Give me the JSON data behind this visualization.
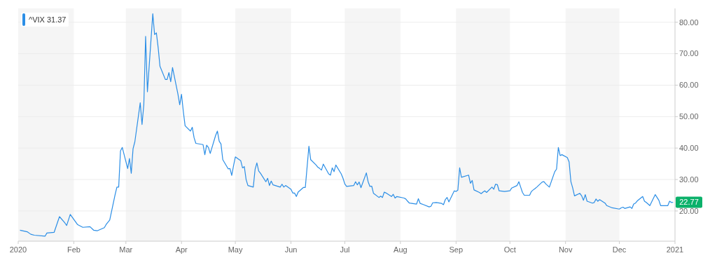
{
  "chart_data": {
    "type": "line",
    "legend": "top left",
    "grid": "y",
    "marker": "none",
    "line_style": "solid",
    "xlim": [
      "2020-01-01",
      "2021-01-01"
    ],
    "xticks": [
      {
        "value": "2020-01-01",
        "label": "2020"
      },
      {
        "value": "2020-02-01",
        "label": "Feb"
      },
      {
        "value": "2020-03-01",
        "label": "Mar"
      },
      {
        "value": "2020-04-01",
        "label": "Apr"
      },
      {
        "value": "2020-05-01",
        "label": "May"
      },
      {
        "value": "2020-06-01",
        "label": "Jun"
      },
      {
        "value": "2020-07-01",
        "label": "Jul"
      },
      {
        "value": "2020-08-01",
        "label": "Aug"
      },
      {
        "value": "2020-09-01",
        "label": "Sep"
      },
      {
        "value": "2020-10-01",
        "label": "Oct"
      },
      {
        "value": "2020-11-01",
        "label": "Nov"
      },
      {
        "value": "2020-12-01",
        "label": "Dec"
      },
      {
        "value": "2021-01-01",
        "label": "2021"
      }
    ],
    "ylim": [
      10.4,
      84.4
    ],
    "yticks": [
      {
        "value": 20,
        "label": "20.00"
      },
      {
        "value": 30,
        "label": "30.00"
      },
      {
        "value": 40,
        "label": "40.00"
      },
      {
        "value": 50,
        "label": "50.00"
      },
      {
        "value": 60,
        "label": "60.00"
      },
      {
        "value": 70,
        "label": "70.00"
      },
      {
        "value": 80,
        "label": "80.00"
      }
    ],
    "bands": [
      {
        "axis": "x",
        "from": "2020-01-01",
        "to": "2020-02-01",
        "color": "#f5f5f5"
      },
      {
        "axis": "x",
        "from": "2020-03-01",
        "to": "2020-04-01",
        "color": "#f5f5f5"
      },
      {
        "axis": "x",
        "from": "2020-05-01",
        "to": "2020-06-01",
        "color": "#f5f5f5"
      },
      {
        "axis": "x",
        "from": "2020-07-01",
        "to": "2020-08-01",
        "color": "#f5f5f5"
      },
      {
        "axis": "x",
        "from": "2020-09-01",
        "to": "2020-10-01",
        "color": "#f5f5f5"
      },
      {
        "axis": "x",
        "from": "2020-11-01",
        "to": "2020-12-01",
        "color": "#f5f5f5"
      }
    ],
    "annotations": [
      {
        "text": "22.77",
        "x": "2020-12-31",
        "y": 22.77
      }
    ],
    "series": [
      {
        "name": "^VIX 31.37",
        "color": "#2b8ee6",
        "x": [
          "2020-01-02",
          "2020-01-06",
          "2020-01-08",
          "2020-01-10",
          "2020-01-16",
          "2020-01-17",
          "2020-01-21",
          "2020-01-24",
          "2020-01-27",
          "2020-01-28",
          "2020-01-30",
          "2020-02-03",
          "2020-02-06",
          "2020-02-10",
          "2020-02-12",
          "2020-02-14",
          "2020-02-18",
          "2020-02-19",
          "2020-02-21",
          "2020-02-24",
          "2020-02-25",
          "2020-02-26",
          "2020-02-27",
          "2020-02-28",
          "2020-03-02",
          "2020-03-03",
          "2020-03-04",
          "2020-03-05",
          "2020-03-06",
          "2020-03-09",
          "2020-03-10",
          "2020-03-11",
          "2020-03-12",
          "2020-03-13",
          "2020-03-16",
          "2020-03-17",
          "2020-03-18",
          "2020-03-19",
          "2020-03-20",
          "2020-03-23",
          "2020-03-24",
          "2020-03-25",
          "2020-03-26",
          "2020-03-27",
          "2020-03-30",
          "2020-03-31",
          "2020-04-01",
          "2020-04-02",
          "2020-04-03",
          "2020-04-06",
          "2020-04-07",
          "2020-04-08",
          "2020-04-09",
          "2020-04-13",
          "2020-04-14",
          "2020-04-15",
          "2020-04-16",
          "2020-04-17",
          "2020-04-20",
          "2020-04-21",
          "2020-04-22",
          "2020-04-23",
          "2020-04-24",
          "2020-04-27",
          "2020-04-28",
          "2020-04-29",
          "2020-04-30",
          "2020-05-01",
          "2020-05-04",
          "2020-05-05",
          "2020-05-06",
          "2020-05-07",
          "2020-05-08",
          "2020-05-11",
          "2020-05-12",
          "2020-05-13",
          "2020-05-14",
          "2020-05-15",
          "2020-05-18",
          "2020-05-19",
          "2020-05-20",
          "2020-05-21",
          "2020-05-22",
          "2020-05-26",
          "2020-05-27",
          "2020-05-28",
          "2020-05-29",
          "2020-06-01",
          "2020-06-02",
          "2020-06-03",
          "2020-06-04",
          "2020-06-05",
          "2020-06-08",
          "2020-06-09",
          "2020-06-11",
          "2020-06-12",
          "2020-06-15",
          "2020-06-16",
          "2020-06-17",
          "2020-06-18",
          "2020-06-19",
          "2020-06-22",
          "2020-06-23",
          "2020-06-24",
          "2020-06-25",
          "2020-06-26",
          "2020-06-29",
          "2020-06-30",
          "2020-07-01",
          "2020-07-02",
          "2020-07-06",
          "2020-07-07",
          "2020-07-08",
          "2020-07-09",
          "2020-07-10",
          "2020-07-13",
          "2020-07-14",
          "2020-07-15",
          "2020-07-16",
          "2020-07-17",
          "2020-07-20",
          "2020-07-21",
          "2020-07-22",
          "2020-07-23",
          "2020-07-24",
          "2020-07-27",
          "2020-07-28",
          "2020-07-29",
          "2020-07-30",
          "2020-08-03",
          "2020-08-04",
          "2020-08-05",
          "2020-08-06",
          "2020-08-10",
          "2020-08-11",
          "2020-08-12",
          "2020-08-14",
          "2020-08-17",
          "2020-08-18",
          "2020-08-19",
          "2020-08-21",
          "2020-08-24",
          "2020-08-25",
          "2020-08-26",
          "2020-08-27",
          "2020-08-28",
          "2020-08-31",
          "2020-09-01",
          "2020-09-02",
          "2020-09-03",
          "2020-09-04",
          "2020-09-08",
          "2020-09-09",
          "2020-09-10",
          "2020-09-11",
          "2020-09-14",
          "2020-09-15",
          "2020-09-16",
          "2020-09-17",
          "2020-09-18",
          "2020-09-21",
          "2020-09-22",
          "2020-09-23",
          "2020-09-24",
          "2020-09-25",
          "2020-09-28",
          "2020-10-01",
          "2020-10-02",
          "2020-10-05",
          "2020-10-06",
          "2020-10-07",
          "2020-10-08",
          "2020-10-09",
          "2020-10-12",
          "2020-10-13",
          "2020-10-14",
          "2020-10-15",
          "2020-10-16",
          "2020-10-19",
          "2020-10-20",
          "2020-10-21",
          "2020-10-22",
          "2020-10-23",
          "2020-10-26",
          "2020-10-27",
          "2020-10-28",
          "2020-10-29",
          "2020-10-30",
          "2020-11-02",
          "2020-11-03",
          "2020-11-04",
          "2020-11-05",
          "2020-11-06",
          "2020-11-09",
          "2020-11-10",
          "2020-11-11",
          "2020-11-12",
          "2020-11-13",
          "2020-11-16",
          "2020-11-17",
          "2020-11-18",
          "2020-11-19",
          "2020-11-20",
          "2020-11-23",
          "2020-11-24",
          "2020-11-27",
          "2020-12-01",
          "2020-12-02",
          "2020-12-03",
          "2020-12-04",
          "2020-12-07",
          "2020-12-08",
          "2020-12-09",
          "2020-12-10",
          "2020-12-11",
          "2020-12-14",
          "2020-12-15",
          "2020-12-16",
          "2020-12-17",
          "2020-12-18",
          "2020-12-21",
          "2020-12-22",
          "2020-12-23",
          "2020-12-24",
          "2020-12-28",
          "2020-12-29",
          "2020-12-30",
          "2020-12-31"
        ],
        "values": [
          13.9,
          13.4,
          12.6,
          12.3,
          12.0,
          13.0,
          13.2,
          18.2,
          16.2,
          15.4,
          18.9,
          15.7,
          14.8,
          15.0,
          13.9,
          13.7,
          14.7,
          15.7,
          17.1,
          25.2,
          27.6,
          27.6,
          39.1,
          40.2,
          33.5,
          36.7,
          32.0,
          39.8,
          42.0,
          54.4,
          47.5,
          53.8,
          75.5,
          57.9,
          82.7,
          76.1,
          76.6,
          71.9,
          66.0,
          61.8,
          61.8,
          64.0,
          61.1,
          65.6,
          57.2,
          53.8,
          57.1,
          51.7,
          47.1,
          45.4,
          46.6,
          43.3,
          41.5,
          41.1,
          37.9,
          40.9,
          40.2,
          38.3,
          44.0,
          45.4,
          42.2,
          41.3,
          36.3,
          33.4,
          33.5,
          31.3,
          34.4,
          37.2,
          36.0,
          33.7,
          34.1,
          30.0,
          28.1,
          27.6,
          33.2,
          35.3,
          32.7,
          32.0,
          29.3,
          30.4,
          28.1,
          29.5,
          28.3,
          27.6,
          28.5,
          27.6,
          28.1,
          26.9,
          25.7,
          25.7,
          24.6,
          26.0,
          27.5,
          27.5,
          40.6,
          36.3,
          34.6,
          33.9,
          33.5,
          33.0,
          34.9,
          31.8,
          31.4,
          33.7,
          32.5,
          34.6,
          31.8,
          30.4,
          28.6,
          27.8,
          28.1,
          29.3,
          28.3,
          29.2,
          27.4,
          32.1,
          29.3,
          27.8,
          27.9,
          25.6,
          24.3,
          24.7,
          24.3,
          26.0,
          25.7,
          24.6,
          25.3,
          24.1,
          24.6,
          24.1,
          23.8,
          23.1,
          22.5,
          22.2,
          23.9,
          22.4,
          22.0,
          21.3,
          21.5,
          22.6,
          22.7,
          22.4,
          22.0,
          23.6,
          24.3,
          22.9,
          26.4,
          26.2,
          26.6,
          33.7,
          30.7,
          31.4,
          28.8,
          29.7,
          26.7,
          25.9,
          25.5,
          26.0,
          26.4,
          25.9,
          27.6,
          26.9,
          28.5,
          28.4,
          26.4,
          26.2,
          26.4,
          27.3,
          28.1,
          29.3,
          27.6,
          25.9,
          25.0,
          25.0,
          26.2,
          26.7,
          27.1,
          27.6,
          29.2,
          29.3,
          28.6,
          28.1,
          27.6,
          32.5,
          33.3,
          40.2,
          37.6,
          37.9,
          37.0,
          35.6,
          29.3,
          27.3,
          24.8,
          25.6,
          24.8,
          23.4,
          25.2,
          23.1,
          22.5,
          22.7,
          23.8,
          23.1,
          23.6,
          22.5,
          21.7,
          21.0,
          20.6,
          21.0,
          21.2,
          20.8,
          21.3,
          20.8,
          22.2,
          22.5,
          23.2,
          24.6,
          23.1,
          22.7,
          22.2,
          21.7,
          25.2,
          24.3,
          23.4,
          21.7,
          21.7,
          23.1,
          22.7,
          22.77
        ]
      }
    ]
  }
}
